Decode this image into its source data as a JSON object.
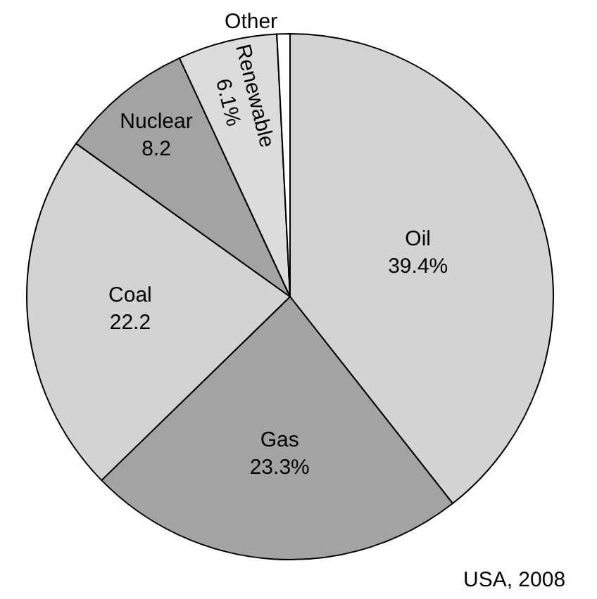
{
  "chart_data": {
    "type": "pie",
    "categories": [
      "Oil",
      "Gas",
      "Coal",
      "Nuclear",
      "Renewable",
      "Other"
    ],
    "values": [
      39.4,
      23.3,
      22.2,
      8.2,
      6.1,
      0.8
    ],
    "value_labels": [
      "39.4%",
      "23.3%",
      "22.2",
      "8.2",
      "6.1%",
      null
    ],
    "colors": [
      "#d3d3d3",
      "#a3a3a3",
      "#d3d3d3",
      "#a3a3a3",
      "#dcdcdc",
      "#ffffff"
    ],
    "annotations": [
      "USA, 2008"
    ],
    "legend": false
  }
}
